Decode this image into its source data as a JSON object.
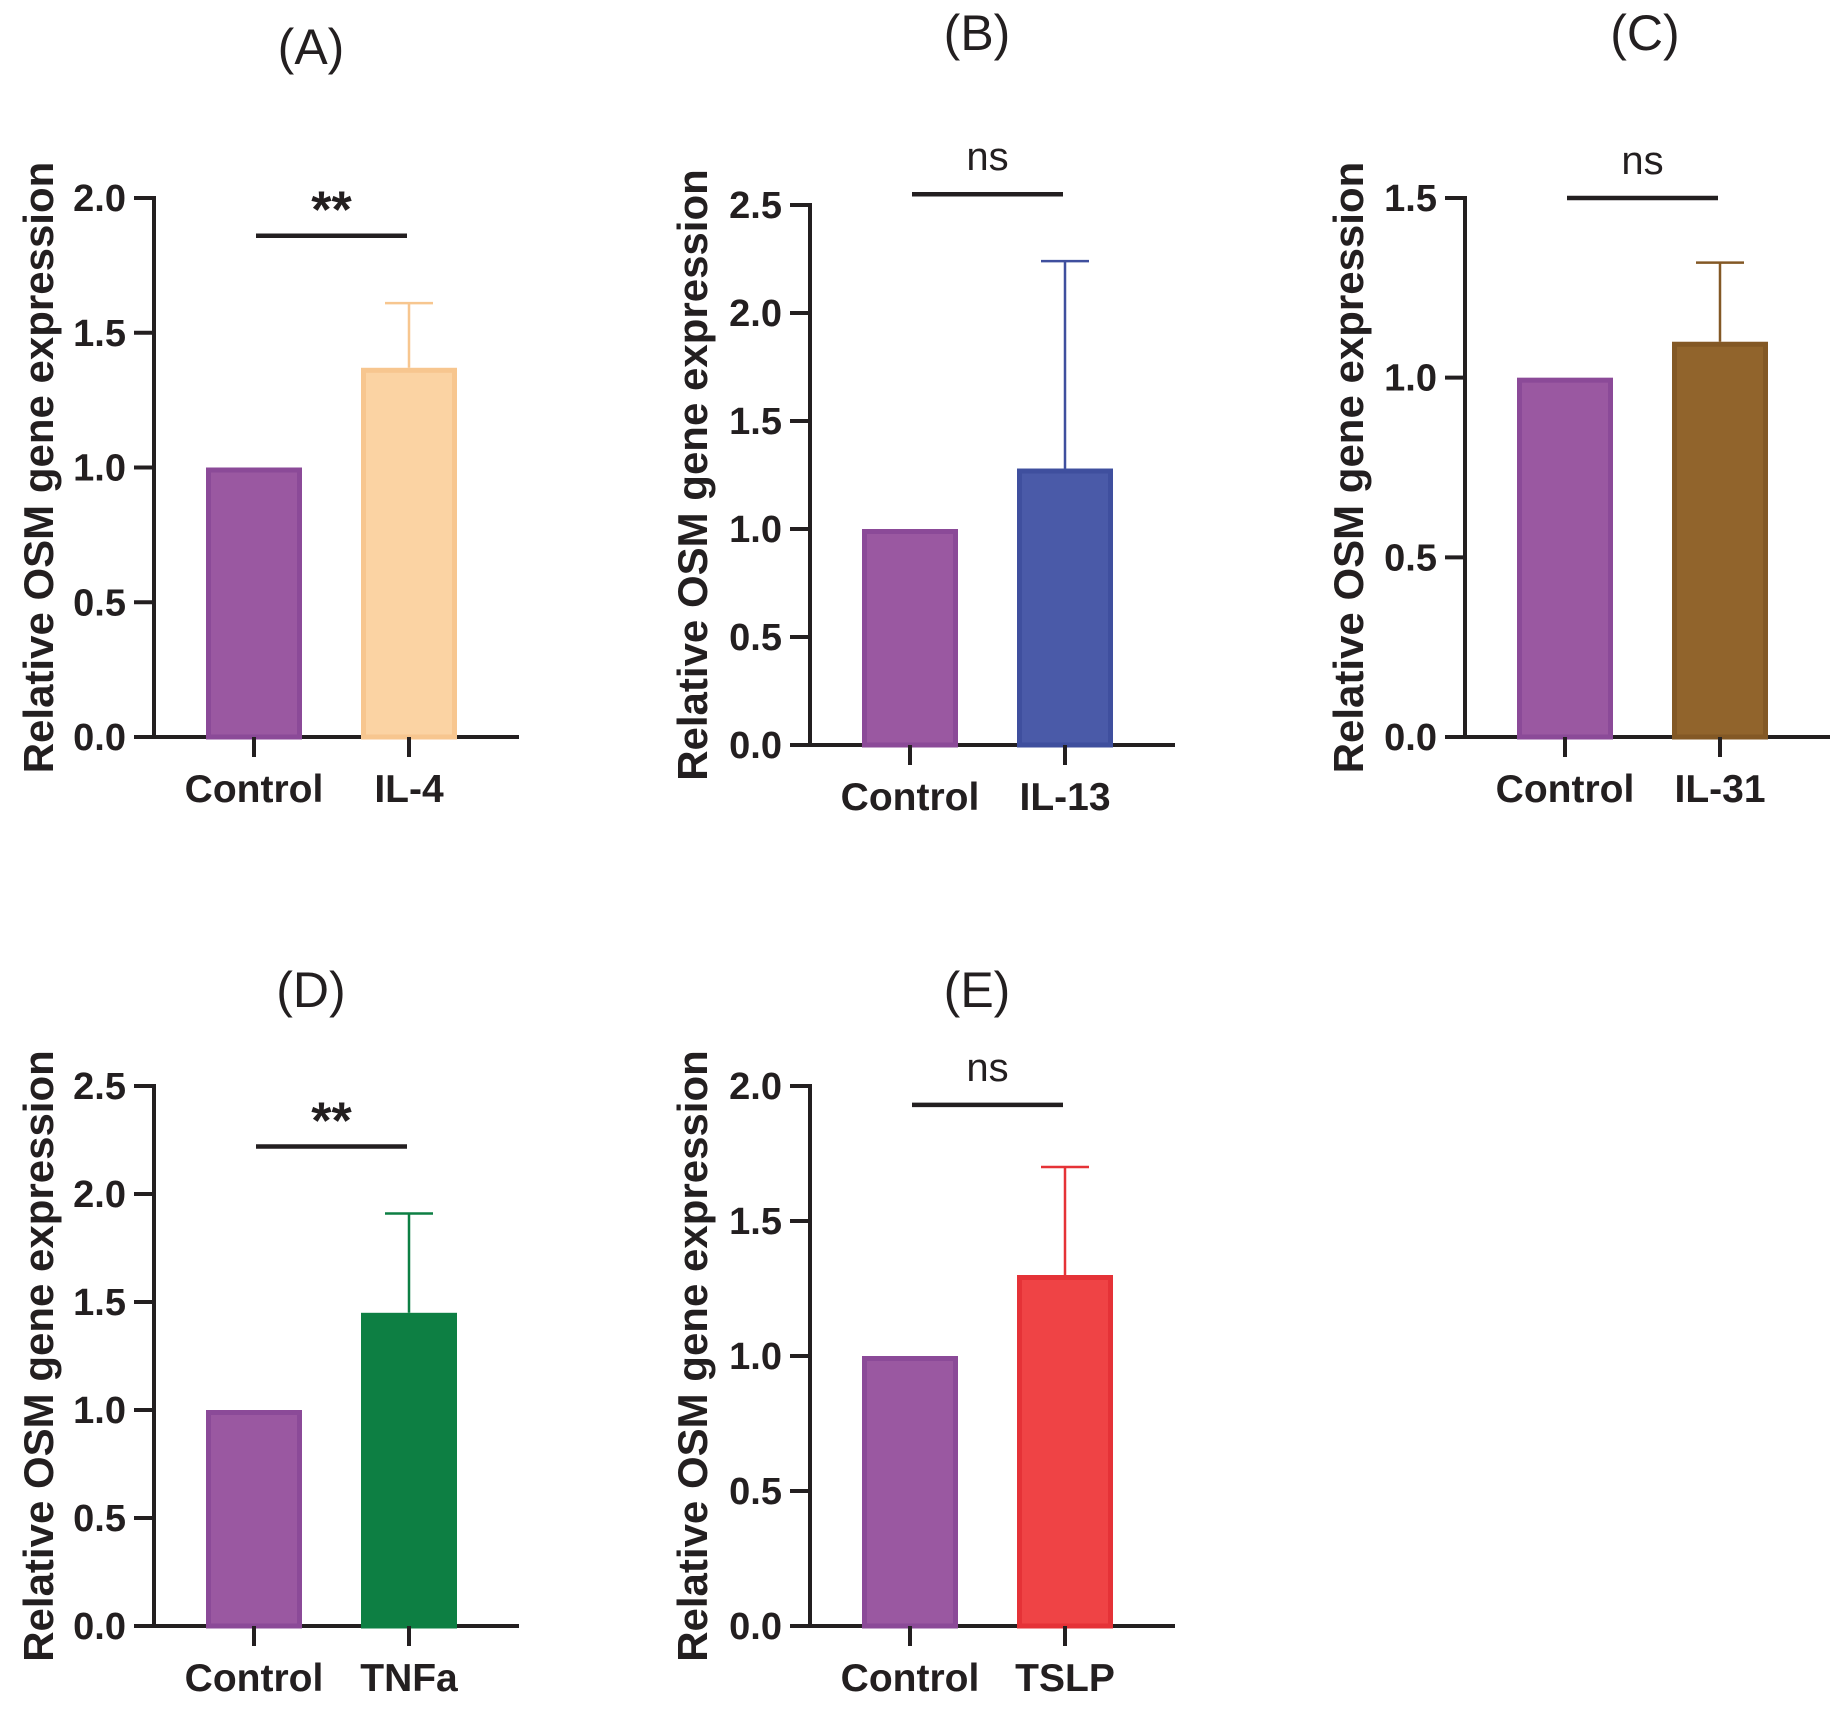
{
  "chart_data": [
    {
      "type": "bar",
      "title": "(A)",
      "ylabel": "Relative OSM gene expression",
      "xlabel": "",
      "categories": [
        "Control",
        "IL-4"
      ],
      "values": [
        1.0,
        1.37
      ],
      "errors": [
        0,
        0.24
      ],
      "ylim": [
        0,
        2.0
      ],
      "yticks": [
        0.0,
        0.5,
        1.0,
        1.5,
        2.0
      ],
      "ytick_labels": [
        "0.0",
        "0.5",
        "1.0",
        "1.5",
        "2.0"
      ],
      "significance": "**",
      "sig_level": 1.86,
      "colors": [
        "#9a58a1",
        "#fbd3a3"
      ],
      "edge_colors": [
        "#8b4a98",
        "#f7c68f"
      ]
    },
    {
      "type": "bar",
      "title": "(B)",
      "ylabel": "Relative OSM gene expression",
      "xlabel": "",
      "categories": [
        "Control",
        "IL-13"
      ],
      "values": [
        1.0,
        1.28
      ],
      "errors": [
        0,
        0.96
      ],
      "ylim": [
        0,
        2.5
      ],
      "yticks": [
        0.0,
        0.5,
        1.0,
        1.5,
        2.0,
        2.5
      ],
      "ytick_labels": [
        "0.0",
        "0.5",
        "1.0",
        "1.5",
        "2.0",
        "2.5"
      ],
      "significance": "ns",
      "sig_level": 2.55,
      "colors": [
        "#9a58a1",
        "#4a5aa8"
      ],
      "edge_colors": [
        "#8b4a98",
        "#3f4f9e"
      ]
    },
    {
      "type": "bar",
      "title": "(C)",
      "ylabel": "Relative OSM gene expression",
      "xlabel": "",
      "categories": [
        "Control",
        "IL-31"
      ],
      "values": [
        1.0,
        1.1
      ],
      "errors": [
        0,
        0.22
      ],
      "ylim": [
        0,
        1.5
      ],
      "yticks": [
        0.0,
        0.5,
        1.0,
        1.5
      ],
      "ytick_labels": [
        "0.0",
        "0.5",
        "1.0",
        "1.5"
      ],
      "significance": "ns",
      "sig_level": 1.5,
      "colors": [
        "#9a58a1",
        "#91642c"
      ],
      "edge_colors": [
        "#8b4a98",
        "#835825"
      ]
    },
    {
      "type": "bar",
      "title": "(D)",
      "ylabel": "Relative OSM gene expression",
      "xlabel": "",
      "categories": [
        "Control",
        "TNFa"
      ],
      "values": [
        1.0,
        1.45
      ],
      "errors": [
        0,
        0.46
      ],
      "ylim": [
        0,
        2.5
      ],
      "yticks": [
        0.0,
        0.5,
        1.0,
        1.5,
        2.0,
        2.5
      ],
      "ytick_labels": [
        "0.0",
        "0.5",
        "1.0",
        "1.5",
        "2.0",
        "2.5"
      ],
      "significance": "**",
      "sig_level": 2.22,
      "colors": [
        "#9a58a1",
        "#0d7f43"
      ],
      "edge_colors": [
        "#8b4a98",
        "#0d7f43"
      ]
    },
    {
      "type": "bar",
      "title": "(E)",
      "ylabel": "Relative OSM gene expression",
      "xlabel": "",
      "categories": [
        "Control",
        "TSLP"
      ],
      "values": [
        1.0,
        1.3
      ],
      "errors": [
        0,
        0.4
      ],
      "ylim": [
        0,
        2.0
      ],
      "yticks": [
        0.0,
        0.5,
        1.0,
        1.5,
        2.0
      ],
      "ytick_labels": [
        "0.0",
        "0.5",
        "1.0",
        "1.5",
        "2.0"
      ],
      "significance": "ns",
      "sig_level": 1.93,
      "colors": [
        "#9a58a1",
        "#ef4345"
      ],
      "edge_colors": [
        "#8b4a98",
        "#e53237"
      ]
    }
  ]
}
